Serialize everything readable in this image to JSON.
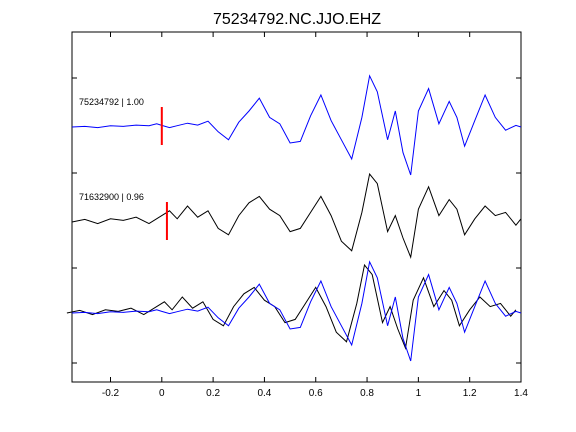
{
  "chart_data": {
    "type": "line",
    "title": "75234792.NC.JJO.EHZ",
    "xlim": [
      -0.35,
      1.4
    ],
    "x_ticks": [
      "-0.2",
      "0",
      "0.2",
      "0.4",
      "0.6",
      "0.8",
      "1",
      "1.2",
      "1.4"
    ],
    "x_tick_values": [
      -0.2,
      0,
      0.2,
      0.4,
      0.6,
      0.8,
      1.0,
      1.2,
      1.4
    ],
    "grid": false,
    "pick_color": "#ff0000",
    "traces": [
      {
        "label": "75234792 | 1.00",
        "color": "#0000ff",
        "pick_time": 0.0,
        "x": [
          -0.35,
          -0.3,
          -0.25,
          -0.2,
          -0.15,
          -0.1,
          -0.05,
          -0.02,
          0.0,
          0.03,
          0.06,
          0.1,
          0.14,
          0.18,
          0.22,
          0.26,
          0.3,
          0.34,
          0.38,
          0.42,
          0.46,
          0.5,
          0.54,
          0.58,
          0.62,
          0.66,
          0.7,
          0.74,
          0.78,
          0.81,
          0.84,
          0.88,
          0.91,
          0.94,
          0.97,
          1.0,
          1.04,
          1.08,
          1.12,
          1.15,
          1.18,
          1.22,
          1.26,
          1.3,
          1.34,
          1.38,
          1.4
        ],
        "y": [
          0,
          0.02,
          -0.02,
          0.04,
          0.02,
          0.06,
          0.04,
          0.1,
          0.05,
          -0.02,
          0.04,
          0.12,
          0.06,
          0.18,
          -0.15,
          -0.4,
          0.15,
          0.5,
          0.9,
          0.3,
          0.1,
          -0.5,
          -0.45,
          0.35,
          1.0,
          0.2,
          -0.4,
          -1.0,
          0.3,
          1.6,
          1.1,
          -0.4,
          0.5,
          -0.8,
          -1.5,
          0.5,
          1.2,
          0.1,
          0.8,
          0.3,
          -0.6,
          0.2,
          1.0,
          0.3,
          -0.1,
          0.05,
          0.0
        ]
      },
      {
        "label": "71632900 | 0.96",
        "color": "#000000",
        "pick_time": 0.02,
        "x": [
          -0.35,
          -0.3,
          -0.25,
          -0.2,
          -0.15,
          -0.1,
          -0.05,
          0.0,
          0.03,
          0.06,
          0.1,
          0.14,
          0.18,
          0.22,
          0.26,
          0.3,
          0.34,
          0.38,
          0.42,
          0.46,
          0.5,
          0.54,
          0.58,
          0.62,
          0.66,
          0.7,
          0.74,
          0.78,
          0.81,
          0.84,
          0.88,
          0.91,
          0.94,
          0.97,
          1.0,
          1.04,
          1.08,
          1.12,
          1.15,
          1.18,
          1.22,
          1.26,
          1.3,
          1.34,
          1.38,
          1.4
        ],
        "y": [
          0,
          0.08,
          -0.05,
          0.1,
          0.05,
          0.15,
          -0.05,
          0.2,
          0.35,
          0.1,
          0.5,
          0.15,
          0.35,
          -0.2,
          -0.4,
          0.2,
          0.6,
          0.8,
          0.4,
          0.2,
          -0.3,
          -0.2,
          0.3,
          0.8,
          0.2,
          -0.6,
          -0.9,
          0.3,
          1.5,
          1.2,
          -0.3,
          0.2,
          -0.5,
          -1.1,
          0.4,
          1.1,
          0.2,
          0.7,
          0.4,
          -0.4,
          0.1,
          0.5,
          0.2,
          0.3,
          -0.1,
          0.1
        ]
      }
    ]
  }
}
